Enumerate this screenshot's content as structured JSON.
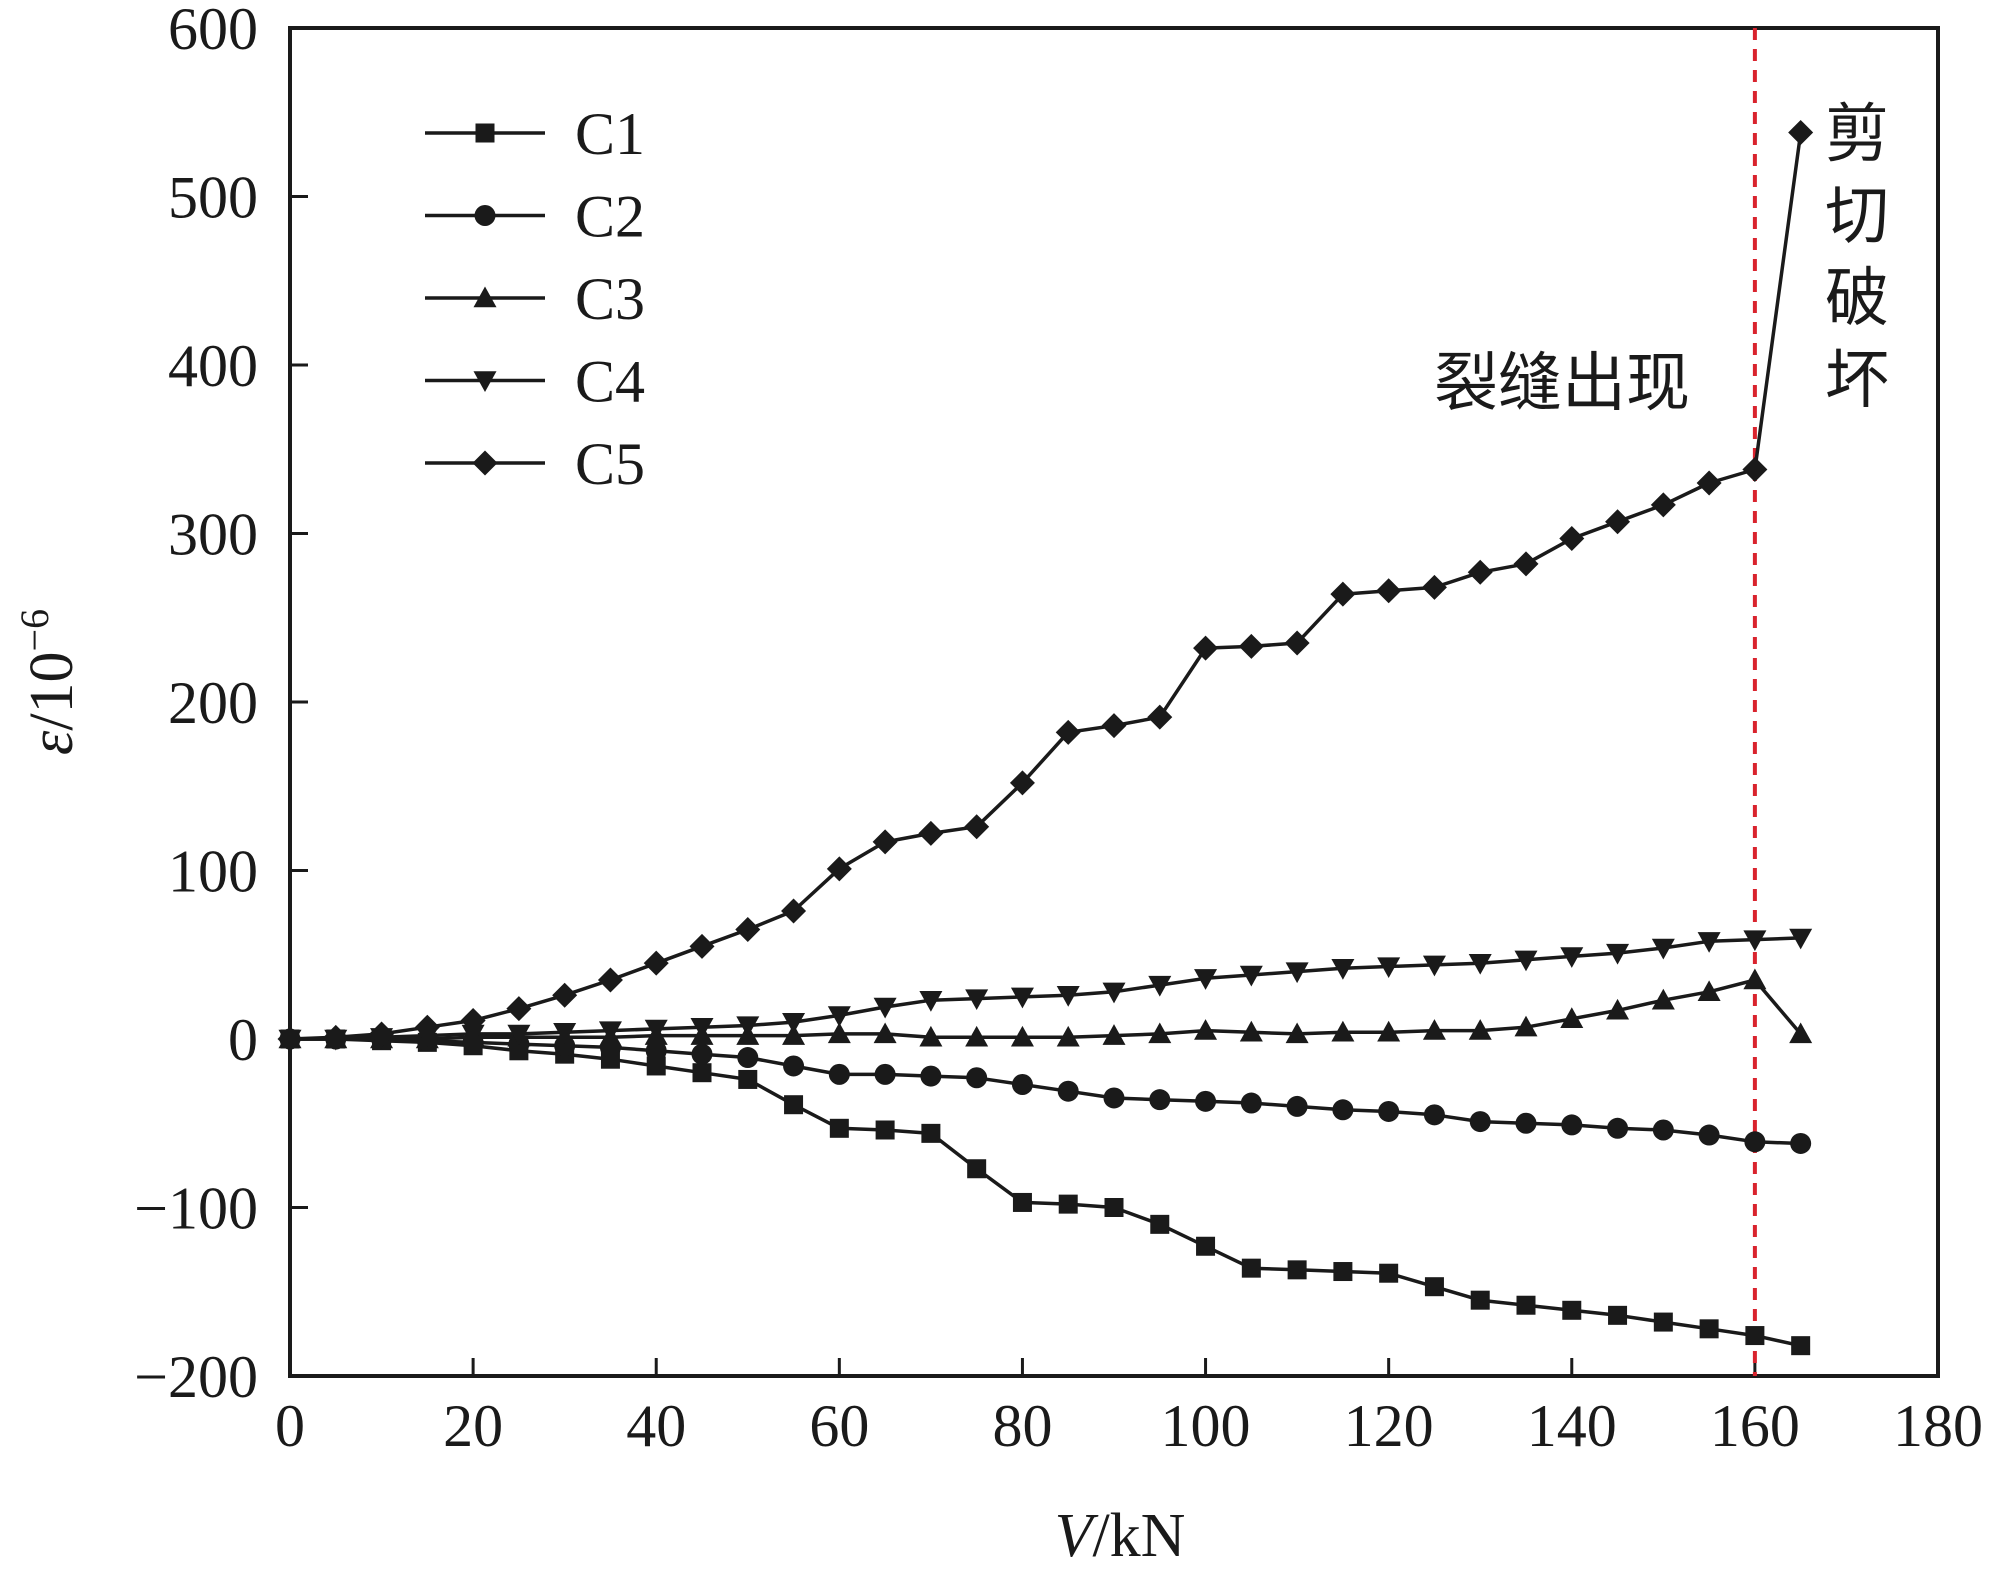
{
  "chart_data": {
    "type": "line",
    "xlabel": "V/kN",
    "xlabel_italic_part": "V",
    "xlabel_rest": "/kN",
    "ylabel_symbol": "ε",
    "ylabel_rest": "/10",
    "ylabel_exponent": "−6",
    "xlim": [
      0,
      180
    ],
    "ylim": [
      -200,
      600
    ],
    "xticks": [
      0,
      20,
      40,
      60,
      80,
      100,
      120,
      140,
      160,
      180
    ],
    "yticks": [
      -200,
      -100,
      0,
      100,
      200,
      300,
      400,
      500,
      600
    ],
    "ytick_labels": [
      "−200",
      "−100",
      "0",
      "100",
      "200",
      "300",
      "400",
      "500",
      "600"
    ],
    "grid": false,
    "legend_position": "top-left",
    "x": [
      0,
      5,
      10,
      15,
      20,
      25,
      30,
      35,
      40,
      45,
      50,
      55,
      60,
      65,
      70,
      75,
      80,
      85,
      90,
      95,
      100,
      105,
      110,
      115,
      120,
      125,
      130,
      135,
      140,
      145,
      150,
      155,
      160,
      165
    ],
    "series": [
      {
        "name": "C1",
        "marker": "square",
        "values": [
          0,
          0,
          -1,
          -2,
          -4,
          -7,
          -9,
          -12,
          -16,
          -20,
          -24,
          -39,
          -53,
          -54,
          -56,
          -77,
          -97,
          -98,
          -100,
          -110,
          -123,
          -136,
          -137,
          -138,
          -139,
          -147,
          -155,
          -158,
          -161,
          -164,
          -168,
          -172,
          -176,
          -182
        ]
      },
      {
        "name": "C2",
        "marker": "circle",
        "values": [
          0,
          0,
          0,
          -1,
          -2,
          -3,
          -4,
          -5,
          -7,
          -9,
          -11,
          -16,
          -21,
          -21,
          -22,
          -23,
          -27,
          -31,
          -35,
          -36,
          -37,
          -38,
          -40,
          -42,
          -43,
          -45,
          -49,
          -50,
          -51,
          -53,
          -54,
          -57,
          -61,
          -62
        ]
      },
      {
        "name": "C3",
        "marker": "triangle-up",
        "values": [
          0,
          0,
          0,
          0,
          1,
          1,
          1,
          1,
          2,
          2,
          2,
          2,
          3,
          3,
          1,
          1,
          1,
          1,
          2,
          3,
          5,
          4,
          3,
          4,
          4,
          5,
          5,
          7,
          12,
          17,
          23,
          28,
          35,
          3
        ]
      },
      {
        "name": "C4",
        "marker": "triangle-down",
        "values": [
          0,
          0,
          1,
          2,
          3,
          3,
          4,
          5,
          6,
          7,
          8,
          10,
          14,
          19,
          23,
          24,
          25,
          26,
          28,
          32,
          36,
          38,
          40,
          42,
          43,
          44,
          45,
          47,
          49,
          51,
          54,
          58,
          59,
          60
        ]
      },
      {
        "name": "C5",
        "marker": "diamond",
        "values": [
          0,
          1,
          3,
          7,
          11,
          18,
          26,
          35,
          45,
          55,
          65,
          76,
          101,
          117,
          122,
          126,
          152,
          182,
          186,
          191,
          232,
          233,
          235,
          264,
          266,
          268,
          277,
          282,
          297,
          307,
          317,
          330,
          338,
          538
        ]
      }
    ],
    "vline": {
      "x": 160,
      "color": "#d9232d",
      "style": "dashed"
    },
    "annotations": [
      {
        "text": "裂缝出现"
      },
      {
        "chars": [
          "剪",
          "切",
          "破",
          "坏"
        ]
      }
    ],
    "colors": {
      "line": "#1a1a1a",
      "axis": "#1a1a1a",
      "vline": "#d9232d"
    }
  }
}
